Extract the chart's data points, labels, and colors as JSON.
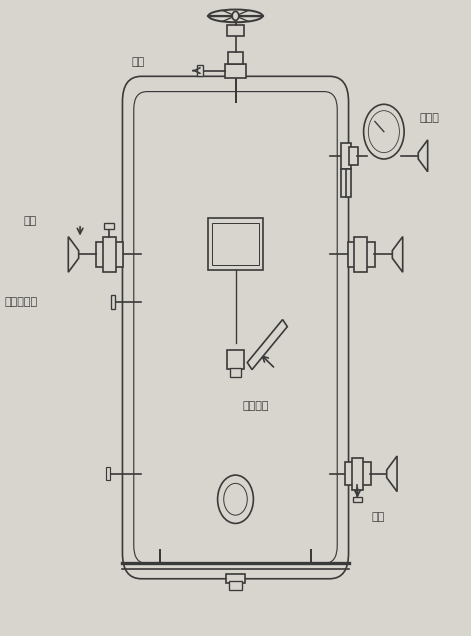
{
  "bg_color": "#d8d5ce",
  "line_color": "#3a3a3a",
  "lw": 1.2,
  "labels": {
    "reduce_pressure": "减压",
    "pressure_gauge": "压力表",
    "oil_in": "进油",
    "liquid_level": "液位计接口",
    "electric_heater": "电加热器",
    "oil_out": "放油"
  }
}
